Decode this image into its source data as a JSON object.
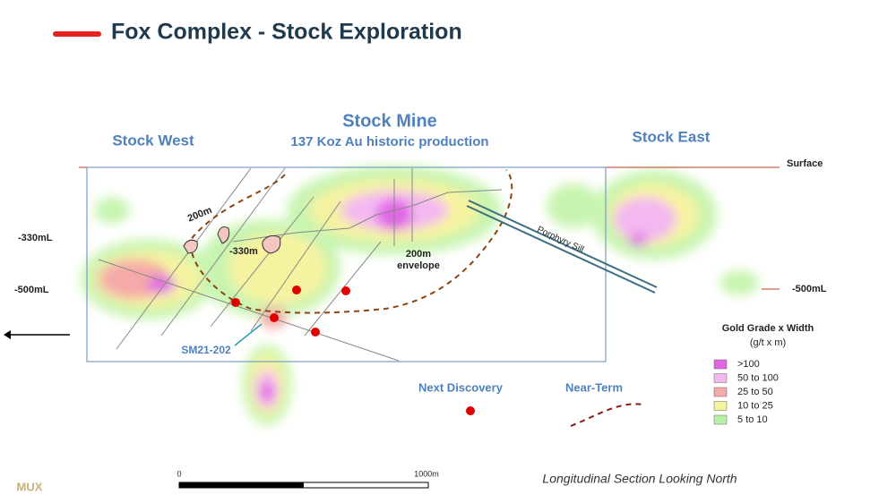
{
  "header": {
    "title": "Fox Complex - Stock Exploration"
  },
  "areas": {
    "west": "Stock West",
    "mine": "Stock Mine",
    "mine_note": "137 Koz Au historic production",
    "east": "Stock East"
  },
  "levels": {
    "surface": "Surface",
    "left_330": "-330mL",
    "left_500": "-500mL",
    "right_500": "-500mL"
  },
  "annotations": {
    "depth_200": "200m",
    "depth_330": "-330m",
    "envelope_1": "200m",
    "envelope_2": "envelope",
    "sill": "Porphyry Sill",
    "hole": "SM21-202",
    "next_discovery": "Next Discovery",
    "near_term": "Near-Term"
  },
  "legend": {
    "title": "Gold Grade x Width",
    "units": "(g/t x m)",
    "items": [
      {
        "label": ">100",
        "color": "#e066e6"
      },
      {
        "label": "50 to 100",
        "color": "#f4b8f0"
      },
      {
        "label": "25 to 50",
        "color": "#f4aaa8"
      },
      {
        "label": "10 to 25",
        "color": "#f6f3a0"
      },
      {
        "label": "5 to 10",
        "color": "#b8f0a8"
      }
    ]
  },
  "scale_bar": {
    "start": "0",
    "end": "1000m"
  },
  "caption": "Longitudinal Section Looking North",
  "logo": "MUX"
}
